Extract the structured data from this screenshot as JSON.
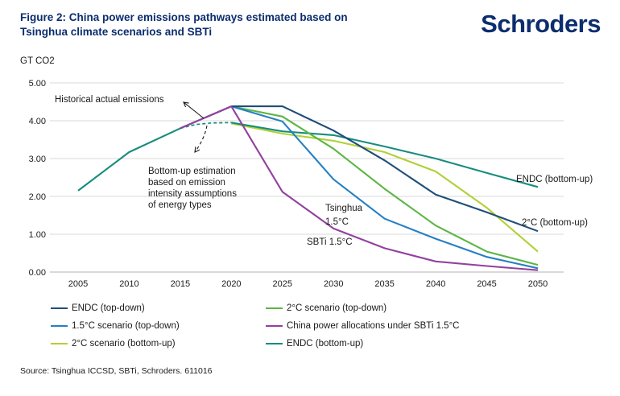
{
  "header": {
    "title_line1": "Figure 2: China power emissions pathways estimated based on",
    "title_line2": "Tsinghua climate scenarios and SBTi",
    "logo_text": "Schroders",
    "brand_color": "#0c2d6e"
  },
  "chart_data": {
    "type": "line",
    "ylabel": "GT CO2",
    "ylim": [
      0,
      5
    ],
    "grid": true,
    "yticks": [
      "0.00",
      "1.00",
      "2.00",
      "3.00",
      "4.00",
      "5.00"
    ],
    "xticks": [
      2005,
      2010,
      2015,
      2020,
      2025,
      2030,
      2035,
      2040,
      2045,
      2050
    ],
    "series": [
      {
        "name": "Historical actual emissions",
        "color": "#178d7e",
        "dash": false,
        "x": [
          2005,
          2010,
          2015,
          2020
        ],
        "values": [
          2.15,
          3.17,
          3.8,
          4.38
        ]
      },
      {
        "name": "Bottom-up estimation based on emission intensity assumptions of energy types",
        "color": "#178d7e",
        "dash": true,
        "x": [
          2015,
          2016.5,
          2018,
          2020
        ],
        "values": [
          3.8,
          3.9,
          3.94,
          3.95
        ]
      },
      {
        "name": "2°C scenario (bottom-up)",
        "color": "#b0d136",
        "dash": false,
        "x": [
          2020,
          2025,
          2030,
          2035,
          2040,
          2045,
          2050
        ],
        "values": [
          3.93,
          3.66,
          3.47,
          3.17,
          2.66,
          1.7,
          0.54
        ]
      },
      {
        "name": "ENDC (bottom-up)",
        "color": "#178d7e",
        "dash": false,
        "x": [
          2020,
          2025,
          2030,
          2035,
          2040,
          2045,
          2050
        ],
        "values": [
          3.95,
          3.72,
          3.62,
          3.32,
          3.0,
          2.62,
          2.25
        ]
      },
      {
        "name": "2°C scenario (top-down)",
        "color": "#5cb544",
        "dash": false,
        "x": [
          2020,
          2025,
          2030,
          2035,
          2040,
          2045,
          2050
        ],
        "values": [
          4.38,
          4.11,
          3.26,
          2.2,
          1.23,
          0.54,
          0.19
        ]
      },
      {
        "name": "1.5°C scenario (top-down)",
        "color": "#2580c3",
        "dash": false,
        "x": [
          2020,
          2025,
          2030,
          2035,
          2040,
          2045,
          2050
        ],
        "values": [
          4.38,
          3.98,
          2.45,
          1.41,
          0.88,
          0.4,
          0.1
        ]
      },
      {
        "name": "ENDC (top-down)",
        "color": "#1f4e79",
        "dash": false,
        "x": [
          2020,
          2025,
          2030,
          2035,
          2040,
          2045,
          2050
        ],
        "values": [
          4.38,
          4.38,
          3.74,
          2.95,
          2.05,
          1.58,
          1.08
        ]
      },
      {
        "name": "China power allocations under SBTi 1.5°C",
        "color": "#9340a0",
        "dash": false,
        "x": [
          2015,
          2020,
          2025,
          2030,
          2035,
          2040,
          2045,
          2050
        ],
        "values": [
          3.8,
          4.38,
          2.12,
          1.15,
          0.63,
          0.28,
          0.16,
          0.05
        ]
      }
    ],
    "annotations": {
      "historical": "Historical actual emissions",
      "bottom_up_lines": [
        "Bottom-up estimation",
        "based on emission",
        "intensity assumptions",
        "of energy types"
      ],
      "tsinghua_line1": "Tsinghua",
      "tsinghua_line2": "1.5°C",
      "sbti": "SBTi 1.5°C",
      "endc_bottom_up": "ENDC (bottom-up)",
      "two_c_bottom_up": "2°C (bottom-up)"
    },
    "legend_position": "bottom"
  },
  "legend": {
    "columns": [
      {
        "items": [
          {
            "label": "ENDC (top-down)",
            "color": "#1f4e79"
          },
          {
            "label": "1.5°C scenario (top-down)",
            "color": "#2580c3"
          },
          {
            "label": "2°C scenario (bottom-up)",
            "color": "#b0d136"
          }
        ]
      },
      {
        "items": [
          {
            "label": "2°C scenario (top-down)",
            "color": "#5cb544"
          },
          {
            "label": "China power allocations under SBTi 1.5°C",
            "color": "#9340a0"
          },
          {
            "label": "ENDC (bottom-up)",
            "color": "#178d7e"
          }
        ]
      }
    ]
  },
  "source": "Source: Tsinghua ICCSD, SBTi, Schroders. 611016"
}
